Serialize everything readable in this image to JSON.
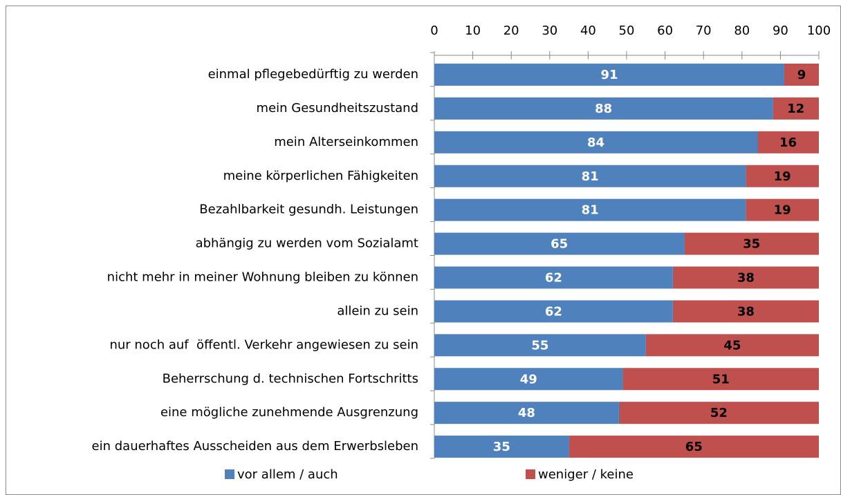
{
  "chart_data": {
    "type": "stacked-bar-horizontal",
    "categories": [
      "einmal pflegebedürftig zu werden",
      "mein Gesundheitszustand",
      "mein Alterseinkommen",
      "meine körperlichen Fähigkeiten",
      "Bezahlbarkeit gesundh. Leistungen",
      "abhängig zu werden vom Sozialamt",
      "nicht mehr in meiner Wohnung bleiben zu können",
      "allein zu sein",
      "nur noch auf  öffentl. Verkehr angewiesen zu sein",
      "Beherrschung d. technischen Fortschritts",
      "eine mögliche zunehmende Ausgrenzung",
      "ein dauerhaftes Ausscheiden aus dem Erwerbsleben"
    ],
    "series": [
      {
        "name": "vor allem / auch",
        "color": "#4f81bd",
        "values": [
          91,
          88,
          84,
          81,
          81,
          65,
          62,
          62,
          55,
          49,
          48,
          35
        ]
      },
      {
        "name": "weniger / keine",
        "color": "#c0504d",
        "values": [
          9,
          12,
          16,
          19,
          19,
          35,
          38,
          38,
          45,
          51,
          52,
          65
        ]
      }
    ],
    "xlim": [
      0,
      100
    ],
    "xticks": [
      0,
      10,
      20,
      30,
      40,
      50,
      60,
      70,
      80,
      90,
      100
    ],
    "legend": "bottom"
  }
}
